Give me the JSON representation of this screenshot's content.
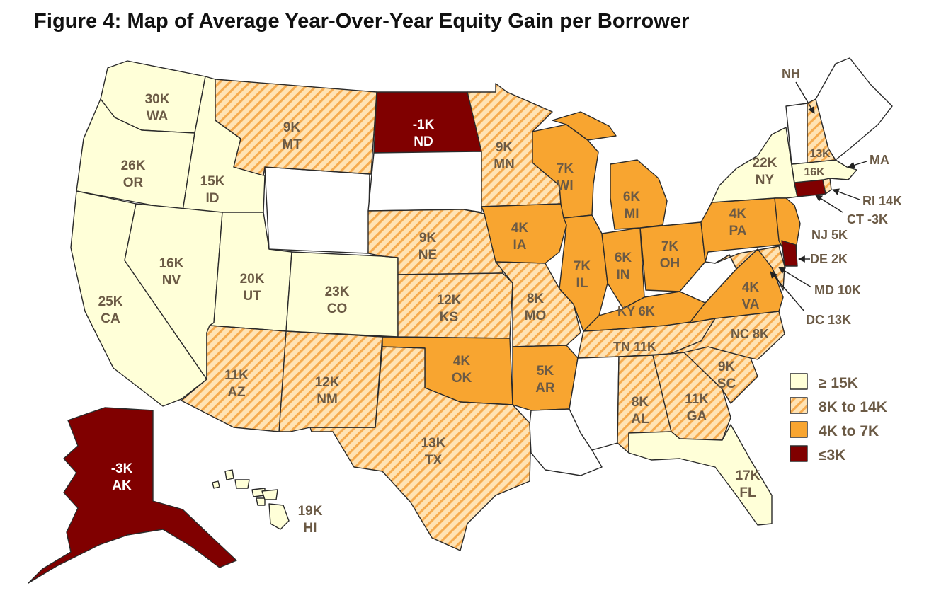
{
  "title": "Figure 4: Map of Average Year-Over-Year Equity Gain per Borrower",
  "colors": {
    "gte15k": "#ffffd8",
    "8to14k_base": "#ffe3b4",
    "8to14k_stripe": "#f6ab4e",
    "4to7k": "#f8a530",
    "lte3k": "#800000",
    "nodata": "#ffffff",
    "label": "#6b5a45"
  },
  "legend": [
    {
      "label": "≥ 15K",
      "category": "gte15k"
    },
    {
      "label": "8K to 14K",
      "category": "8to14k"
    },
    {
      "label": "4K to 7K",
      "category": "4to7k"
    },
    {
      "label": "≤3K",
      "category": "lte3k"
    }
  ],
  "states": {
    "WA": {
      "value": "30K",
      "category": "gte15k"
    },
    "OR": {
      "value": "26K",
      "category": "gte15k"
    },
    "CA": {
      "value": "25K",
      "category": "gte15k"
    },
    "ID": {
      "value": "15K",
      "category": "gte15k"
    },
    "NV": {
      "value": "16K",
      "category": "gte15k"
    },
    "UT": {
      "value": "20K",
      "category": "gte15k"
    },
    "CO": {
      "value": "23K",
      "category": "gte15k"
    },
    "MT": {
      "value": "9K",
      "category": "8to14k"
    },
    "ND": {
      "value": "-1K",
      "category": "lte3k"
    },
    "MN": {
      "value": "9K",
      "category": "8to14k"
    },
    "NE": {
      "value": "9K",
      "category": "8to14k"
    },
    "KS": {
      "value": "12K",
      "category": "8to14k"
    },
    "AZ": {
      "value": "11K",
      "category": "8to14k"
    },
    "NM": {
      "value": "12K",
      "category": "8to14k"
    },
    "TX": {
      "value": "13K",
      "category": "8to14k"
    },
    "OK": {
      "value": "4K",
      "category": "4to7k"
    },
    "MO": {
      "value": "8K",
      "category": "8to14k"
    },
    "AR": {
      "value": "5K",
      "category": "4to7k"
    },
    "IA": {
      "value": "4K",
      "category": "4to7k"
    },
    "WI": {
      "value": "7K",
      "category": "4to7k"
    },
    "IL": {
      "value": "7K",
      "category": "4to7k"
    },
    "MI": {
      "value": "6K",
      "category": "4to7k"
    },
    "IN": {
      "value": "6K",
      "category": "4to7k"
    },
    "OH": {
      "value": "7K",
      "category": "4to7k"
    },
    "KY": {
      "value": "6K",
      "category": "4to7k"
    },
    "TN": {
      "value": "11K",
      "category": "8to14k"
    },
    "AL": {
      "value": "8K",
      "category": "8to14k"
    },
    "GA": {
      "value": "11K",
      "category": "8to14k"
    },
    "FL": {
      "value": "17K",
      "category": "gte15k"
    },
    "SC": {
      "value": "9K",
      "category": "8to14k"
    },
    "NC": {
      "value": "8K",
      "category": "8to14k"
    },
    "VA": {
      "value": "4K",
      "category": "4to7k"
    },
    "PA": {
      "value": "4K",
      "category": "4to7k"
    },
    "NY": {
      "value": "22K",
      "category": "gte15k"
    },
    "NJ": {
      "value": "5K",
      "category": "4to7k"
    },
    "DE": {
      "value": "2K",
      "category": "lte3k"
    },
    "MD": {
      "value": "10K",
      "category": "8to14k"
    },
    "DC": {
      "value": "13K",
      "category": "8to14k"
    },
    "CT": {
      "value": "-3K",
      "category": "lte3k"
    },
    "RI": {
      "value": "14K",
      "category": "8to14k"
    },
    "MA": {
      "value": "16K",
      "category": "gte15k"
    },
    "NH": {
      "value": "13K",
      "category": "8to14k"
    },
    "AK": {
      "value": "-3K",
      "category": "lte3k"
    },
    "HI": {
      "value": "19K",
      "category": "gte15k"
    }
  },
  "callouts": {
    "NH": "NH",
    "MA": "MA",
    "RI": "RI 14K",
    "CT": "CT -3K",
    "NJ": "NJ 5K",
    "DE": "DE 2K",
    "MD": "MD 10K",
    "DC": "DC 13K",
    "KY": "KY 6K",
    "TN": "TN 11K",
    "NC": "NC 8K"
  }
}
